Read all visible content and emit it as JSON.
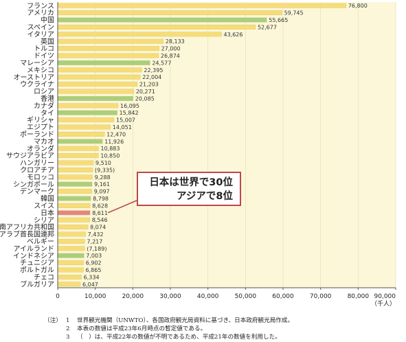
{
  "chart_data": {
    "type": "bar",
    "orientation": "horizontal",
    "categories": [
      "フランス",
      "アメリカ",
      "中国",
      "スペイン",
      "イタリア",
      "英国",
      "トルコ",
      "ドイツ",
      "マレーシア",
      "メキシコ",
      "オーストリア",
      "ウクライナ",
      "ロシア",
      "香港",
      "カナダ",
      "タイ",
      "ギリシャ",
      "エジプト",
      "ポーランド",
      "マカオ",
      "オランダ",
      "サウジアラビア",
      "ハンガリー",
      "クロアチア",
      "モロッコ",
      "シンガポール",
      "デンマーク",
      "韓国",
      "スイス",
      "日本",
      "シリア",
      "南アフリカ共和国",
      "アラブ首長国連邦",
      "ベルギー",
      "アイルランド",
      "インドネシア",
      "チュニジア",
      "ポルトガル",
      "チェコ",
      "ブルガリア"
    ],
    "values": [
      76800,
      59745,
      55665,
      52677,
      43626,
      28133,
      27000,
      26874,
      24577,
      22395,
      22004,
      21203,
      20271,
      20085,
      16095,
      15842,
      15007,
      14051,
      12470,
      11926,
      10883,
      10850,
      9510,
      9335,
      9288,
      9161,
      9097,
      8798,
      8628,
      8611,
      8546,
      8074,
      7432,
      7217,
      7189,
      7003,
      6902,
      6865,
      6334,
      6047
    ],
    "value_labels": [
      "76,800",
      "59,745",
      "55,665",
      "52,677",
      "43,626",
      "28,133",
      "27,000",
      "26,874",
      "24,577",
      "22,395",
      "22,004",
      "21,203",
      "20,271",
      "20,085",
      "16,095",
      "15,842",
      "15,007",
      "14,051",
      "12,470",
      "11,926",
      "10,883",
      "10,850",
      "9,510",
      "(9,335)",
      "9,288",
      "9,161",
      "9,097",
      "8,798",
      "8,628",
      "8,611",
      "8,546",
      "8,074",
      "7,432",
      "7,217",
      "(7,189)",
      "7,003",
      "6,902",
      "6,865",
      "6,334",
      "6,047"
    ],
    "bar_colors": [
      "yellow",
      "yellow",
      "green",
      "yellow",
      "yellow",
      "yellow",
      "yellow",
      "yellow",
      "green",
      "yellow",
      "yellow",
      "yellow",
      "yellow",
      "green",
      "yellow",
      "green",
      "yellow",
      "yellow",
      "yellow",
      "green",
      "yellow",
      "yellow",
      "yellow",
      "yellow",
      "yellow",
      "green",
      "yellow",
      "green",
      "yellow",
      "red",
      "yellow",
      "yellow",
      "yellow",
      "yellow",
      "yellow",
      "green",
      "yellow",
      "yellow",
      "yellow",
      "yellow"
    ],
    "xlim": [
      0,
      90000
    ],
    "xticks": [
      0,
      10000,
      20000,
      30000,
      40000,
      50000,
      60000,
      70000,
      80000,
      90000
    ],
    "xtick_labels": [
      "0",
      "10,000",
      "20,000",
      "30,000",
      "40,000",
      "50,000",
      "60,000",
      "70,000",
      "80,000",
      "90,000"
    ],
    "xlabel": "（千人）",
    "grid": true,
    "colors": {
      "yellow": "#f7dc7a",
      "green": "#a9cf7d",
      "red": "#e48585",
      "plot_bg": "#fbf7d8",
      "grid": "#e8e2bf",
      "accent": "#c0454a"
    }
  },
  "callout": {
    "line1": "日本は世界で30位",
    "line2": "アジアで8位"
  },
  "notes": [
    {
      "lead": "（注）",
      "num": "1",
      "text": "世界観光機関（UNWTO）、各国政府観光局資料に基づき、日本政府観光局作成。"
    },
    {
      "lead": "",
      "num": "2",
      "text": "本表の数値は平成23年6月時点の暫定値である。"
    },
    {
      "lead": "",
      "num": "3",
      "text": "（　）は、平成22年の数値が不明であるため、平成21年の数値を利用した。"
    }
  ]
}
